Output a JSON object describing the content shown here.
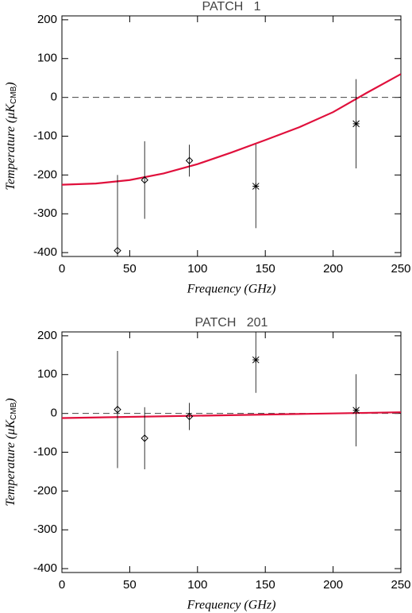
{
  "chart_data": [
    {
      "type": "errorbar",
      "title": "PATCH   1",
      "xlabel": "Frequency (GHz)",
      "ylabel": [
        "Temperature (μK",
        "CMB",
        ")"
      ],
      "xlim": [
        0,
        250
      ],
      "xticks": [
        0,
        50,
        100,
        150,
        200,
        250
      ],
      "ylim": [
        -410,
        210
      ],
      "yticks": [
        -400,
        -300,
        -200,
        -100,
        0,
        100,
        200
      ],
      "hline": 0,
      "x": [
        41,
        61,
        94,
        143,
        217
      ],
      "values": [
        -395,
        -213,
        -163,
        -229,
        -68
      ],
      "errors": [
        195,
        100,
        41,
        108,
        115
      ],
      "markers": [
        "diamond",
        "diamond",
        "diamond",
        "asterisk",
        "asterisk"
      ],
      "color": "#000000",
      "fit": {
        "color": "#e0103c",
        "x": [
          0,
          25,
          50,
          75,
          100,
          125,
          150,
          175,
          200,
          225,
          250
        ],
        "values": [
          -225,
          -222,
          -213,
          -196,
          -172,
          -142,
          -110,
          -77,
          -38,
          12,
          60
        ]
      }
    },
    {
      "type": "errorbar",
      "title": "PATCH   201",
      "xlabel": "Frequency (GHz)",
      "ylabel": [
        "Temperature (μK",
        "CMB",
        ")"
      ],
      "xlim": [
        0,
        250
      ],
      "xticks": [
        0,
        50,
        100,
        150,
        200,
        250
      ],
      "ylim": [
        -410,
        210
      ],
      "yticks": [
        -400,
        -300,
        -200,
        -100,
        0,
        100,
        200
      ],
      "hline": 0,
      "x": [
        41,
        61,
        94,
        143,
        217
      ],
      "values": [
        10,
        -64,
        -8,
        138,
        8
      ],
      "errors": [
        151,
        80,
        35,
        85,
        93
      ],
      "markers": [
        "diamond",
        "diamond",
        "diamond",
        "asterisk",
        "asterisk"
      ],
      "color": "#000000",
      "fit": {
        "color": "#e0103c",
        "x": [
          0,
          250
        ],
        "values": [
          -12,
          3
        ]
      }
    }
  ]
}
